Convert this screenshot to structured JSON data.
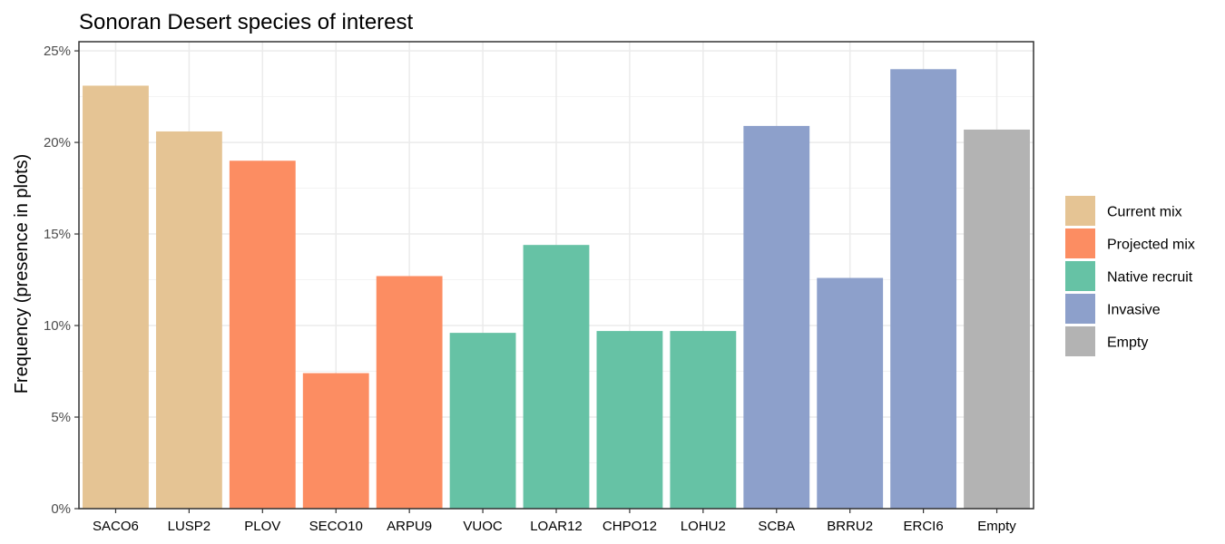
{
  "chart_data": {
    "type": "bar",
    "title": "Sonoran Desert species of interest",
    "xlabel": "",
    "ylabel": "Frequency (presence in plots)",
    "ylim": [
      0,
      0.255
    ],
    "y_ticks": [
      0,
      0.05,
      0.1,
      0.15,
      0.2,
      0.25
    ],
    "y_tick_labels": [
      "0%",
      "5%",
      "10%",
      "15%",
      "20%",
      "25%"
    ],
    "grid": true,
    "legend_position": "right",
    "categories": [
      "SACO6",
      "LUSP2",
      "PLOV",
      "SECO10",
      "ARPU9",
      "VUOC",
      "LOAR12",
      "CHPO12",
      "LOHU2",
      "SCBA",
      "BRRU2",
      "ERCI6",
      "Empty"
    ],
    "values": [
      0.231,
      0.206,
      0.19,
      0.074,
      0.127,
      0.096,
      0.144,
      0.097,
      0.097,
      0.209,
      0.126,
      0.24,
      0.207
    ],
    "groups": [
      "Current mix",
      "Current mix",
      "Projected mix",
      "Projected mix",
      "Projected mix",
      "Native recruit",
      "Native recruit",
      "Native recruit",
      "Native recruit",
      "Invasive",
      "Invasive",
      "Invasive",
      "Empty"
    ],
    "legend": [
      {
        "name": "Current mix",
        "color": "#e5c494"
      },
      {
        "name": "Projected mix",
        "color": "#fc8d62"
      },
      {
        "name": "Native recruit",
        "color": "#66c2a5"
      },
      {
        "name": "Invasive",
        "color": "#8da0cb"
      },
      {
        "name": "Empty",
        "color": "#b3b3b3"
      }
    ]
  }
}
